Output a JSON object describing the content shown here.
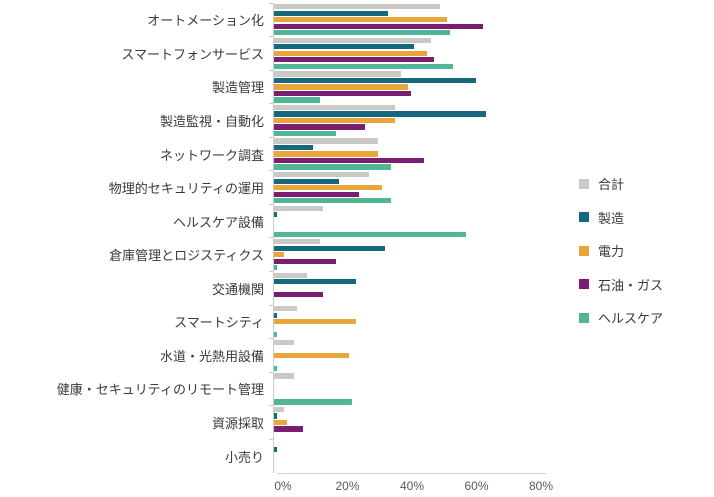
{
  "chart_data": {
    "type": "bar",
    "orientation": "horizontal",
    "title": "",
    "xlabel": "",
    "ylabel": "",
    "xlim": [
      0,
      80
    ],
    "x_ticks": [
      "0%",
      "20%",
      "40%",
      "60%",
      "80%"
    ],
    "grid": false,
    "legend_position": "right",
    "categories": [
      "オートメーション化",
      "スマートフォンサービス",
      "製造管理",
      "製造監視・自動化",
      "ネットワーク調査",
      "物理的セキュリティの運用",
      "ヘルスケア設備",
      "倉庫管理とロジスティクス",
      "交通機関",
      "スマートシティ",
      "水道・光熱用設備",
      "健康・セキュリティのリモート管理",
      "資源採取",
      "小売り"
    ],
    "series": [
      {
        "name": "合計",
        "color": "#c9c9c7",
        "values": [
          51,
          48,
          39,
          37,
          32,
          29,
          15,
          14,
          10,
          7,
          6,
          6,
          3,
          0
        ]
      },
      {
        "name": "製造",
        "color": "#16687f",
        "values": [
          35,
          43,
          62,
          65,
          12,
          20,
          1,
          34,
          25,
          1,
          0,
          0,
          1,
          1
        ]
      },
      {
        "name": "電力",
        "color": "#e9a63b",
        "values": [
          53,
          47,
          41,
          37,
          32,
          33,
          0,
          3,
          0,
          25,
          23,
          0,
          4,
          0
        ]
      },
      {
        "name": "石油・ガス",
        "color": "#7b1e71",
        "values": [
          64,
          49,
          42,
          28,
          46,
          26,
          0,
          19,
          15,
          0,
          0,
          0,
          9,
          0
        ]
      },
      {
        "name": "ヘルスケア",
        "color": "#50b695",
        "values": [
          54,
          55,
          14,
          19,
          36,
          36,
          59,
          1,
          0,
          1,
          1,
          24,
          0,
          0
        ]
      }
    ],
    "colors": {
      "axis_line": "#cfcdcb",
      "tick_label": "#595959",
      "category_label": "#3a3a3a",
      "background": "#ffffff"
    }
  }
}
